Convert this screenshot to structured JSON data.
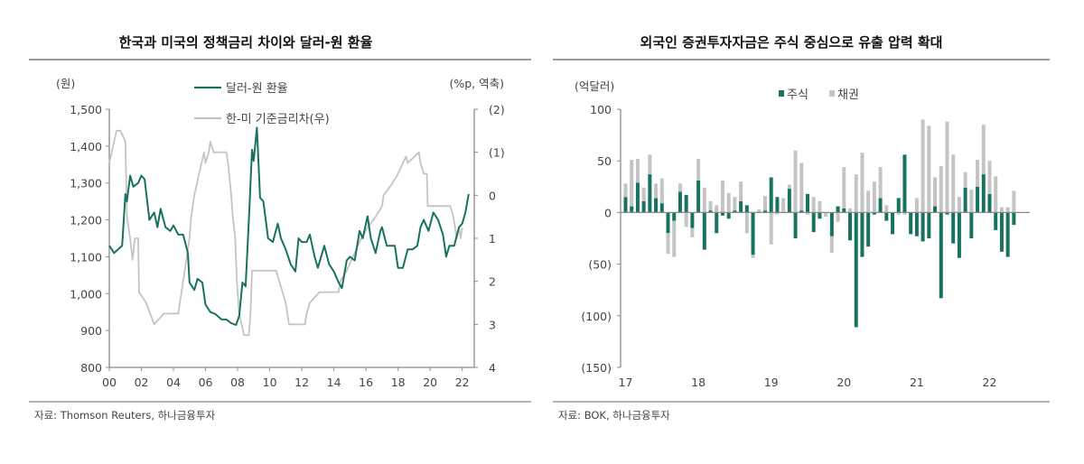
{
  "colors": {
    "green": "#17735f",
    "gray": "#c4c4c4",
    "axis": "#8a8a8a",
    "rule": "#9a9a9a"
  },
  "chart_data": [
    {
      "type": "line",
      "title": "한국과 미국의 정책금리 차이와 달러-원 환율",
      "source": "자료: Thomson Reuters, 하나금융투자",
      "y_left_unit": "(원)",
      "y_right_unit": "(%p, 역축)",
      "x_ticks": [
        "00",
        "02",
        "04",
        "06",
        "08",
        "10",
        "12",
        "14",
        "16",
        "18",
        "20",
        "22"
      ],
      "y_left_ticks": [
        "1,500",
        "1,400",
        "1,300",
        "1,200",
        "1,100",
        "1,000",
        "900",
        "800"
      ],
      "y_right_ticks": [
        "(2)",
        "(1)",
        "0",
        "1",
        "2",
        "3",
        "4"
      ],
      "ylim_left": [
        800,
        1500
      ],
      "ylim_right": [
        -2,
        4
      ],
      "right_axis_reversed": true,
      "xlim": [
        2000,
        2022.75
      ],
      "grid": false,
      "legend_placement": "top",
      "series": [
        {
          "name": "달러-원 환율",
          "axis": "left",
          "color": "#17735f",
          "x": [
            2000.0,
            2000.3,
            2000.8,
            2001.0,
            2001.1,
            2001.3,
            2001.5,
            2001.8,
            2002.0,
            2002.2,
            2002.5,
            2002.8,
            2003.0,
            2003.2,
            2003.5,
            2003.8,
            2004.0,
            2004.3,
            2004.6,
            2004.9,
            2005.0,
            2005.3,
            2005.5,
            2005.8,
            2006.0,
            2006.3,
            2006.6,
            2007.0,
            2007.3,
            2007.6,
            2007.9,
            2008.1,
            2008.3,
            2008.5,
            2008.7,
            2008.9,
            2009.0,
            2009.2,
            2009.4,
            2009.6,
            2009.9,
            2010.2,
            2010.5,
            2010.7,
            2011.0,
            2011.3,
            2011.6,
            2011.8,
            2012.0,
            2012.3,
            2012.5,
            2012.8,
            2013.0,
            2013.4,
            2013.7,
            2014.0,
            2014.3,
            2014.5,
            2014.8,
            2015.0,
            2015.3,
            2015.6,
            2015.8,
            2016.1,
            2016.3,
            2016.6,
            2016.9,
            2017.0,
            2017.3,
            2017.8,
            2018.0,
            2018.3,
            2018.6,
            2018.9,
            2019.2,
            2019.4,
            2019.6,
            2019.9,
            2020.2,
            2020.5,
            2020.8,
            2021.0,
            2021.2,
            2021.5,
            2021.8,
            2022.0,
            2022.2,
            2022.4
          ],
          "values": [
            1130,
            1110,
            1130,
            1270,
            1250,
            1320,
            1290,
            1300,
            1320,
            1310,
            1200,
            1220,
            1180,
            1230,
            1180,
            1170,
            1185,
            1160,
            1160,
            1110,
            1030,
            1010,
            1040,
            1030,
            970,
            950,
            945,
            930,
            930,
            920,
            915,
            940,
            1030,
            1020,
            1200,
            1390,
            1360,
            1450,
            1260,
            1250,
            1150,
            1140,
            1190,
            1150,
            1120,
            1080,
            1060,
            1150,
            1140,
            1140,
            1160,
            1100,
            1070,
            1130,
            1080,
            1060,
            1030,
            1015,
            1090,
            1100,
            1090,
            1170,
            1150,
            1210,
            1150,
            1110,
            1170,
            1180,
            1130,
            1130,
            1070,
            1070,
            1120,
            1120,
            1130,
            1180,
            1200,
            1170,
            1220,
            1200,
            1160,
            1100,
            1130,
            1130,
            1180,
            1190,
            1220,
            1270
          ]
        },
        {
          "name": "한-미 기준금리차(우)",
          "axis": "right",
          "color": "#c4c4c4",
          "x": [
            2000.0,
            2000.3,
            2000.45,
            2000.7,
            2001.0,
            2001.1,
            2001.3,
            2001.45,
            2001.6,
            2001.8,
            2001.85,
            2002.3,
            2002.8,
            2003.4,
            2004.3,
            2004.4,
            2004.6,
            2004.7,
            2005.0,
            2005.1,
            2005.3,
            2005.45,
            2005.6,
            2005.9,
            2006.0,
            2006.2,
            2006.3,
            2006.5,
            2007.3,
            2007.4,
            2007.6,
            2007.7,
            2007.85,
            2007.95,
            2008.1,
            2008.4,
            2008.7,
            2008.8,
            2008.9,
            2010.4,
            2010.6,
            2010.8,
            2011.0,
            2011.2,
            2012.2,
            2012.3,
            2012.5,
            2013.1,
            2014.3,
            2014.4,
            2014.8,
            2015.1,
            2015.4,
            2015.7,
            2016.1,
            2016.6,
            2017.0,
            2017.1,
            2017.6,
            2018.0,
            2018.3,
            2018.5,
            2018.6,
            2019.3,
            2019.4,
            2019.6,
            2019.8,
            2019.85,
            2021.25,
            2021.45,
            2021.65,
            2021.8,
            2021.9,
            2022.0
          ],
          "values": [
            -0.75,
            -1.25,
            -1.5,
            -1.5,
            -1.25,
            0.5,
            1.0,
            1.5,
            1.0,
            1.0,
            2.25,
            2.5,
            3.0,
            2.75,
            2.75,
            2.5,
            2.0,
            1.75,
            1.0,
            0.5,
            0.0,
            -0.25,
            -0.5,
            -1.0,
            -0.75,
            -1.0,
            -1.25,
            -1.0,
            -1.0,
            -0.75,
            0.0,
            0.5,
            1.0,
            2.0,
            2.75,
            3.25,
            3.25,
            2.75,
            1.75,
            1.75,
            2.0,
            2.25,
            2.5,
            3.0,
            3.0,
            2.75,
            2.5,
            2.25,
            2.25,
            2.0,
            1.75,
            1.5,
            1.25,
            1.0,
            0.75,
            0.5,
            0.25,
            0.0,
            -0.25,
            -0.5,
            -0.75,
            -0.9,
            -0.75,
            -1.0,
            -0.75,
            -0.5,
            -0.5,
            0.25,
            0.25,
            0.5,
            1.0,
            0.75,
            1.0,
            0.75
          ]
        }
      ]
    },
    {
      "type": "bar",
      "stacked": true,
      "title": "외국인 증권투자자금은 주식 중심으로 유출 압력 확대",
      "source": "자료: BOK, 하나금융투자",
      "y_unit": "(억달러)",
      "x_ticks": [
        "17",
        "18",
        "19",
        "20",
        "21",
        "22"
      ],
      "y_ticks": [
        "100",
        "50",
        "0",
        "(50)",
        "(100)",
        "(150)"
      ],
      "ylim": [
        -150,
        100
      ],
      "grid": false,
      "legend_placement": "top",
      "categories_start": "2017-01",
      "categories_end": "2022-05",
      "series": [
        {
          "name": "주식",
          "color": "#17735f",
          "values": [
            15,
            6,
            29,
            11,
            37,
            14,
            9,
            -20,
            -8,
            20,
            17,
            -15,
            31,
            -36,
            2,
            -20,
            -3,
            -6,
            2,
            11,
            7,
            -41,
            0,
            2,
            34,
            15,
            0,
            23,
            -25,
            2,
            18,
            -19,
            -6,
            0,
            -23,
            6,
            4,
            -27,
            -111,
            -43,
            -33,
            -2,
            14,
            -8,
            -21,
            14,
            56,
            -21,
            -23,
            -28,
            -25,
            6,
            -83,
            -2,
            -30,
            -44,
            24,
            -25,
            25,
            37,
            18,
            -17,
            -38,
            -43,
            -12
          ]
        },
        {
          "name": "채권",
          "color": "#c4c4c4",
          "values": [
            13,
            45,
            23,
            13,
            19,
            14,
            24,
            -20,
            -35,
            8,
            -14,
            -9,
            21,
            24,
            9,
            7,
            31,
            19,
            13,
            19,
            -20,
            -3,
            3,
            14,
            -31,
            -2,
            14,
            4,
            60,
            46,
            -2,
            15,
            11,
            -4,
            -16,
            -9,
            40,
            4,
            37,
            58,
            21,
            30,
            30,
            7,
            0,
            -2,
            -2,
            0,
            14,
            90,
            84,
            28,
            45,
            88,
            56,
            15,
            15,
            22,
            26,
            48,
            32,
            35,
            5,
            5,
            21
          ]
        }
      ]
    }
  ]
}
